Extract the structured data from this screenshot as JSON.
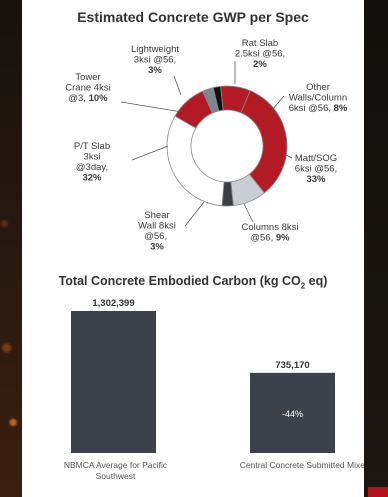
{
  "chart_data": [
    {
      "type": "pie",
      "title": "Estimated Concrete GWP per Spec",
      "slices": [
        {
          "label": "Lightweight 3ksi @56,",
          "value": 3,
          "color": "#7c8590"
        },
        {
          "label": "Rat Slab 2.5ksi @56,",
          "value": 2,
          "color": "#111111"
        },
        {
          "label": "Other Walls/Column 6ksi @56,",
          "value": 8,
          "color": "#b31b24"
        },
        {
          "label": "Matt/SOG 6ksi @56,",
          "value": 33,
          "color": "#b31b24"
        },
        {
          "label": "Columns 8ksi @56,",
          "value": 9,
          "color": "#c9ced4"
        },
        {
          "label": "Shear Wall 8ksi @56,",
          "value": 3,
          "color": "#3a3f47"
        },
        {
          "label": "P/T Slab 3ksi @3day,",
          "value": 32,
          "color": "#ffffff"
        },
        {
          "label": "Tower Crane 4ksi @3,",
          "value": 10,
          "color": "#b31b24"
        }
      ],
      "labels": {
        "lightweight": [
          "Lightweight",
          "3ksi @56,",
          "3%"
        ],
        "ratslab": [
          "Rat Slab",
          "2.5ksi @56,",
          "2%"
        ],
        "other": [
          "Other",
          "Walls/Column",
          "6ksi @56, ",
          "8%"
        ],
        "matt": [
          "Matt/SOG",
          "6ksi @56,",
          "33%"
        ],
        "columns": [
          "Columns 8ksi",
          "@56, ",
          "9%"
        ],
        "shear": [
          "Shear",
          "Wall 8ksi",
          "@56, ",
          "3%"
        ],
        "pt": [
          "P/T Slab",
          "3ksi",
          "@3day,",
          "32%"
        ],
        "tower": [
          "Tower",
          "Crane 4ksi",
          "@3, ",
          "10%"
        ]
      }
    },
    {
      "type": "bar",
      "title": "Total Concrete Embodied Carbon (kg CO₂ eq)",
      "title_prefix": "Total Concrete Embodied Carbon (kg CO",
      "title_sub": "2",
      "title_suffix": " eq)",
      "categories": [
        "NBMCA Average for Pacific Southwest",
        "Central Concrete Submitted Mixes"
      ],
      "category_lines": [
        [
          "NBMCA Average for Pacific",
          "Southwest"
        ],
        [
          "Central Concrete Submitted Mixes"
        ]
      ],
      "values": [
        1302399,
        735170
      ],
      "value_labels": [
        "1,302,399",
        "735,170"
      ],
      "annotation": "-44%",
      "ylim": [
        0,
        1302399
      ],
      "bar_color": "#3d4149"
    }
  ]
}
